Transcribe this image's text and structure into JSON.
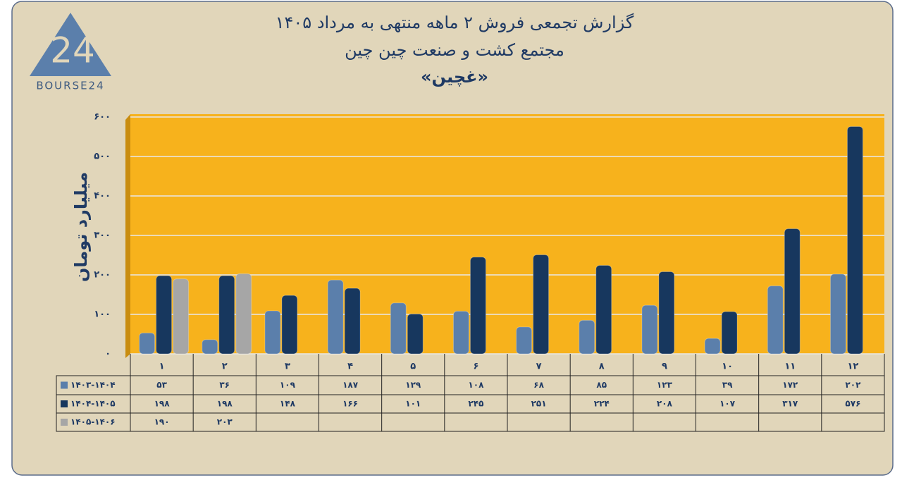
{
  "logo": {
    "mark": "24",
    "name": "BOURSE24"
  },
  "chart_data": {
    "type": "bar",
    "title": "گزارش تجمعی فروش ۲ ماهه منتهی به مرداد ۱۴۰۵",
    "subtitle": "مجتمع کشت و صنعت چین چین",
    "symbol": "«غچین»",
    "y_label": "میلیارد تومان",
    "categories": [
      "۱",
      "۲",
      "۳",
      "۴",
      "۵",
      "۶",
      "۷",
      "۸",
      "۹",
      "۱۰",
      "۱۱",
      "۱۲"
    ],
    "series": [
      {
        "name": "۱۴۰۳-۱۴۰۴",
        "color": "#5b7fab",
        "values": [
          53,
          36,
          109,
          187,
          129,
          108,
          68,
          85,
          123,
          39,
          172,
          202
        ],
        "value_labels": [
          "۵۳",
          "۳۶",
          "۱۰۹",
          "۱۸۷",
          "۱۲۹",
          "۱۰۸",
          "۶۸",
          "۸۵",
          "۱۲۳",
          "۳۹",
          "۱۷۲",
          "۲۰۲"
        ]
      },
      {
        "name": "۱۴۰۴-۱۴۰۵",
        "color": "#17375e",
        "values": [
          198,
          198,
          148,
          166,
          101,
          245,
          251,
          224,
          208,
          107,
          317,
          576
        ],
        "value_labels": [
          "۱۹۸",
          "۱۹۸",
          "۱۴۸",
          "۱۶۶",
          "۱۰۱",
          "۲۴۵",
          "۲۵۱",
          "۲۲۴",
          "۲۰۸",
          "۱۰۷",
          "۳۱۷",
          "۵۷۶"
        ]
      },
      {
        "name": "۱۴۰۵-۱۴۰۶",
        "color": "#a6a6a6",
        "values": [
          190,
          203,
          null,
          null,
          null,
          null,
          null,
          null,
          null,
          null,
          null,
          null
        ],
        "value_labels": [
          "۱۹۰",
          "۲۰۳",
          null,
          null,
          null,
          null,
          null,
          null,
          null,
          null,
          null,
          null
        ]
      }
    ],
    "ylim": [
      0,
      600
    ],
    "yticks": [
      {
        "value": 0,
        "label": "۰"
      },
      {
        "value": 100,
        "label": "۱۰۰"
      },
      {
        "value": 200,
        "label": "۲۰۰"
      },
      {
        "value": 300,
        "label": "۳۰۰"
      },
      {
        "value": 400,
        "label": "۴۰۰"
      },
      {
        "value": 500,
        "label": "۵۰۰"
      },
      {
        "value": 600,
        "label": "۶۰۰"
      }
    ],
    "grid": true,
    "plot_color": "#f7b21c"
  }
}
